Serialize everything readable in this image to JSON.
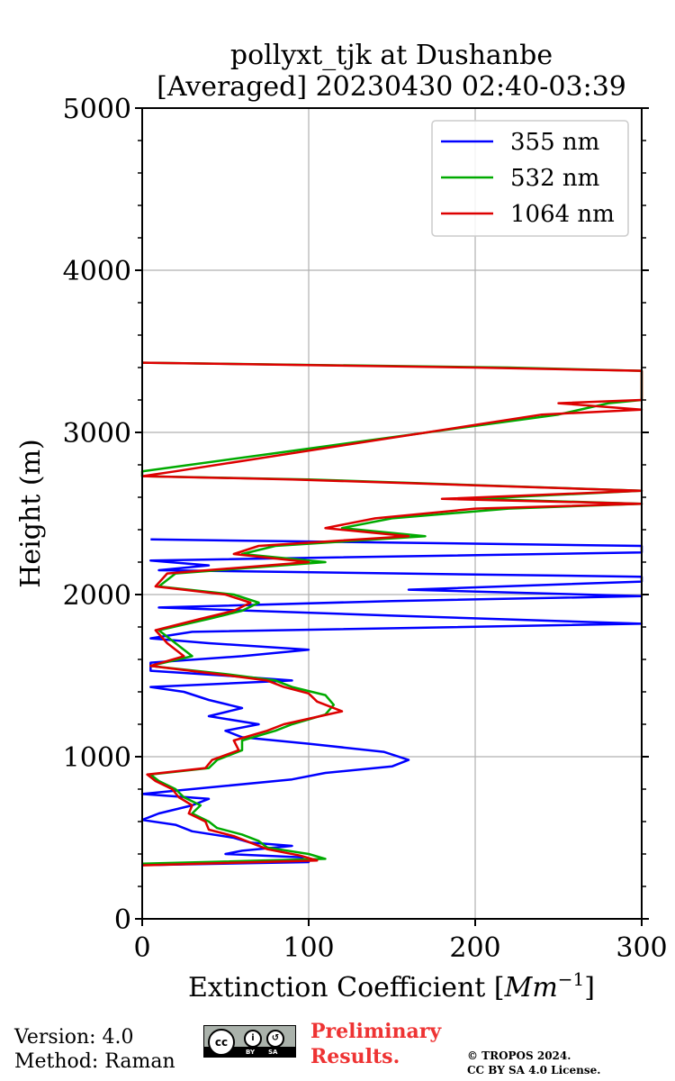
{
  "chart_data": {
    "type": "line",
    "title": [
      "pollyxt_tjk at Dushanbe",
      "[Averaged] 20230430 02:40-03:39"
    ],
    "xlabel": "Extinction Coefficient [Mm⁻¹]",
    "ylabel": "Height (m)",
    "xlim": [
      0,
      300
    ],
    "ylim": [
      0,
      5000
    ],
    "xticks": [
      "0",
      "100",
      "200",
      "300"
    ],
    "yticks": [
      "0",
      "1000",
      "2000",
      "3000",
      "4000",
      "5000"
    ],
    "grid": true,
    "legend_position": "top-right",
    "series": [
      {
        "name": "355 nm",
        "color": "#0000ff",
        "points": [
          [
            8,
            333
          ],
          [
            100,
            350
          ],
          [
            95,
            380
          ],
          [
            50,
            400
          ],
          [
            60,
            420
          ],
          [
            90,
            450
          ],
          [
            65,
            470
          ],
          [
            55,
            500
          ],
          [
            30,
            540
          ],
          [
            20,
            580
          ],
          [
            0,
            610
          ],
          [
            10,
            650
          ],
          [
            30,
            700
          ],
          [
            40,
            740
          ],
          [
            0,
            770
          ],
          [
            20,
            790
          ],
          [
            50,
            820
          ],
          [
            90,
            860
          ],
          [
            110,
            900
          ],
          [
            150,
            940
          ],
          [
            160,
            980
          ],
          [
            145,
            1030
          ],
          [
            100,
            1080
          ],
          [
            60,
            1120
          ],
          [
            50,
            1160
          ],
          [
            70,
            1200
          ],
          [
            40,
            1250
          ],
          [
            60,
            1300
          ],
          [
            40,
            1350
          ],
          [
            25,
            1400
          ],
          [
            5,
            1430
          ],
          [
            90,
            1470
          ],
          [
            50,
            1500
          ],
          [
            5,
            1530
          ],
          [
            5,
            1580
          ],
          [
            60,
            1620
          ],
          [
            100,
            1660
          ],
          [
            40,
            1700
          ],
          [
            5,
            1730
          ],
          [
            30,
            1770
          ],
          [
            300,
            1820
          ],
          [
            150,
            1870
          ],
          [
            10,
            1920
          ],
          [
            150,
            1960
          ],
          [
            300,
            1990
          ],
          [
            160,
            2030
          ],
          [
            300,
            2080
          ],
          [
            300,
            2110
          ],
          [
            10,
            2150
          ],
          [
            40,
            2180
          ],
          [
            5,
            2210
          ],
          [
            300,
            2260
          ],
          [
            300,
            2300
          ],
          [
            5,
            2340
          ]
        ]
      },
      {
        "name": "532 nm",
        "color": "#00aa00",
        "points": [
          [
            0,
            340
          ],
          [
            110,
            370
          ],
          [
            100,
            400
          ],
          [
            75,
            440
          ],
          [
            70,
            480
          ],
          [
            60,
            520
          ],
          [
            45,
            560
          ],
          [
            40,
            600
          ],
          [
            30,
            650
          ],
          [
            35,
            700
          ],
          [
            25,
            750
          ],
          [
            20,
            800
          ],
          [
            10,
            850
          ],
          [
            5,
            890
          ],
          [
            40,
            930
          ],
          [
            45,
            980
          ],
          [
            60,
            1040
          ],
          [
            60,
            1100
          ],
          [
            80,
            1160
          ],
          [
            90,
            1200
          ],
          [
            110,
            1260
          ],
          [
            115,
            1320
          ],
          [
            110,
            1380
          ],
          [
            90,
            1430
          ],
          [
            80,
            1470
          ],
          [
            50,
            1510
          ],
          [
            5,
            1560
          ],
          [
            30,
            1620
          ],
          [
            20,
            1700
          ],
          [
            10,
            1780
          ],
          [
            40,
            1850
          ],
          [
            60,
            1900
          ],
          [
            70,
            1950
          ],
          [
            55,
            2000
          ],
          [
            10,
            2050
          ],
          [
            20,
            2130
          ],
          [
            110,
            2200
          ],
          [
            60,
            2250
          ],
          [
            80,
            2300
          ],
          [
            170,
            2360
          ],
          [
            120,
            2410
          ],
          [
            150,
            2470
          ],
          [
            220,
            2530
          ],
          [
            300,
            2560
          ],
          [
            200,
            2590
          ],
          [
            300,
            2640
          ],
          [
            100,
            2710
          ],
          [
            0,
            2730
          ],
          [
            0,
            2760
          ],
          [
            250,
            3110
          ],
          [
            280,
            3180
          ],
          [
            300,
            3200
          ],
          [
            300,
            3380
          ],
          [
            220,
            3400
          ],
          [
            0,
            3430
          ]
        ]
      },
      {
        "name": "1064 nm",
        "color": "#dd0000",
        "points": [
          [
            0,
            330
          ],
          [
            105,
            360
          ],
          [
            95,
            390
          ],
          [
            75,
            430
          ],
          [
            65,
            470
          ],
          [
            55,
            510
          ],
          [
            40,
            550
          ],
          [
            38,
            600
          ],
          [
            28,
            650
          ],
          [
            30,
            700
          ],
          [
            22,
            750
          ],
          [
            18,
            800
          ],
          [
            8,
            850
          ],
          [
            3,
            890
          ],
          [
            38,
            930
          ],
          [
            42,
            980
          ],
          [
            58,
            1040
          ],
          [
            55,
            1100
          ],
          [
            75,
            1160
          ],
          [
            85,
            1200
          ],
          [
            120,
            1280
          ],
          [
            105,
            1340
          ],
          [
            100,
            1390
          ],
          [
            85,
            1430
          ],
          [
            75,
            1470
          ],
          [
            45,
            1510
          ],
          [
            5,
            1560
          ],
          [
            25,
            1620
          ],
          [
            15,
            1700
          ],
          [
            8,
            1780
          ],
          [
            35,
            1850
          ],
          [
            55,
            1900
          ],
          [
            65,
            1950
          ],
          [
            50,
            2000
          ],
          [
            8,
            2050
          ],
          [
            15,
            2130
          ],
          [
            100,
            2200
          ],
          [
            55,
            2250
          ],
          [
            70,
            2300
          ],
          [
            160,
            2360
          ],
          [
            110,
            2410
          ],
          [
            140,
            2470
          ],
          [
            200,
            2530
          ],
          [
            300,
            2560
          ],
          [
            180,
            2590
          ],
          [
            300,
            2640
          ],
          [
            90,
            2710
          ],
          [
            0,
            2730
          ],
          [
            20,
            2760
          ],
          [
            240,
            3110
          ],
          [
            300,
            3140
          ],
          [
            250,
            3180
          ],
          [
            300,
            3200
          ],
          [
            300,
            3380
          ],
          [
            200,
            3400
          ],
          [
            0,
            3430
          ]
        ]
      }
    ]
  },
  "footer": {
    "version": "Version: 4.0",
    "method": "Method: Raman",
    "license_badge": {
      "cc": "cc",
      "by": "BY",
      "sa": "SA"
    },
    "preliminary_line1": "Preliminary",
    "preliminary_line2": "Results.",
    "copyright_line1": "© TROPOS 2024.",
    "copyright_line2": "CC BY SA 4.0 License."
  }
}
